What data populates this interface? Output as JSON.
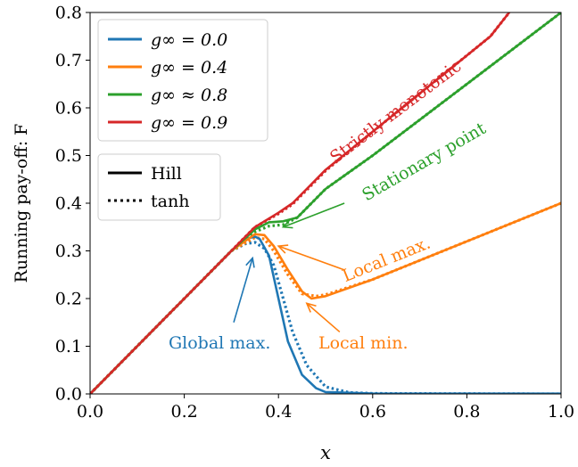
{
  "chart_data": {
    "type": "line",
    "xlabel": "x",
    "ylabel": "Running pay-off: F",
    "xlim": [
      0.0,
      1.0
    ],
    "ylim": [
      0.0,
      0.8
    ],
    "xticks": [
      0.0,
      0.2,
      0.4,
      0.6,
      0.8,
      1.0
    ],
    "xtick_labels": [
      "0.0",
      "0.2",
      "0.4",
      "0.6",
      "0.8",
      "1.0"
    ],
    "yticks": [
      0.0,
      0.1,
      0.2,
      0.3,
      0.4,
      0.5,
      0.6,
      0.7,
      0.8
    ],
    "ytick_labels": [
      "0.0",
      "0.1",
      "0.2",
      "0.3",
      "0.4",
      "0.5",
      "0.6",
      "0.7",
      "0.8"
    ],
    "grid": false,
    "legend_position": "top-left",
    "series": [
      {
        "name": "g∞ = 0.0",
        "color": "#1f77b4",
        "hill": [
          [
            0,
            0
          ],
          [
            0.1,
            0.1
          ],
          [
            0.2,
            0.2
          ],
          [
            0.3,
            0.3
          ],
          [
            0.33,
            0.325
          ],
          [
            0.35,
            0.33
          ],
          [
            0.36,
            0.325
          ],
          [
            0.38,
            0.29
          ],
          [
            0.4,
            0.2
          ],
          [
            0.42,
            0.11
          ],
          [
            0.45,
            0.04
          ],
          [
            0.48,
            0.012
          ],
          [
            0.5,
            0.004
          ],
          [
            0.6,
            0.001
          ],
          [
            0.8,
            0.0005
          ],
          [
            1.0,
            0.0005
          ]
        ],
        "tanh": [
          [
            0,
            0
          ],
          [
            0.1,
            0.1
          ],
          [
            0.2,
            0.2
          ],
          [
            0.3,
            0.3
          ],
          [
            0.33,
            0.315
          ],
          [
            0.35,
            0.318
          ],
          [
            0.37,
            0.305
          ],
          [
            0.39,
            0.27
          ],
          [
            0.41,
            0.2
          ],
          [
            0.43,
            0.13
          ],
          [
            0.46,
            0.06
          ],
          [
            0.5,
            0.015
          ],
          [
            0.55,
            0.003
          ],
          [
            0.6,
            0.001
          ],
          [
            1.0,
            0.0
          ]
        ]
      },
      {
        "name": "g∞ = 0.4",
        "color": "#ff7f0e",
        "hill": [
          [
            0,
            0
          ],
          [
            0.1,
            0.1
          ],
          [
            0.2,
            0.2
          ],
          [
            0.3,
            0.3
          ],
          [
            0.35,
            0.335
          ],
          [
            0.37,
            0.333
          ],
          [
            0.39,
            0.31
          ],
          [
            0.42,
            0.26
          ],
          [
            0.45,
            0.215
          ],
          [
            0.47,
            0.2
          ],
          [
            0.5,
            0.205
          ],
          [
            0.6,
            0.24
          ],
          [
            0.8,
            0.32
          ],
          [
            1.0,
            0.4
          ]
        ],
        "tanh": [
          [
            0,
            0
          ],
          [
            0.1,
            0.1
          ],
          [
            0.2,
            0.2
          ],
          [
            0.3,
            0.3
          ],
          [
            0.35,
            0.328
          ],
          [
            0.37,
            0.325
          ],
          [
            0.39,
            0.3
          ],
          [
            0.42,
            0.25
          ],
          [
            0.45,
            0.21
          ],
          [
            0.48,
            0.205
          ],
          [
            0.5,
            0.208
          ],
          [
            0.6,
            0.24
          ],
          [
            0.8,
            0.32
          ],
          [
            1.0,
            0.4
          ]
        ]
      },
      {
        "name": "g∞ ≈ 0.8",
        "color": "#2ca02c",
        "hill": [
          [
            0,
            0
          ],
          [
            0.1,
            0.1
          ],
          [
            0.2,
            0.2
          ],
          [
            0.3,
            0.3
          ],
          [
            0.35,
            0.345
          ],
          [
            0.38,
            0.36
          ],
          [
            0.41,
            0.362
          ],
          [
            0.44,
            0.37
          ],
          [
            0.47,
            0.4
          ],
          [
            0.5,
            0.43
          ],
          [
            0.6,
            0.5
          ],
          [
            0.8,
            0.65
          ],
          [
            1.0,
            0.8
          ]
        ],
        "tanh": [
          [
            0,
            0
          ],
          [
            0.1,
            0.1
          ],
          [
            0.2,
            0.2
          ],
          [
            0.3,
            0.3
          ],
          [
            0.35,
            0.34
          ],
          [
            0.38,
            0.352
          ],
          [
            0.41,
            0.355
          ],
          [
            0.44,
            0.37
          ],
          [
            0.47,
            0.4
          ],
          [
            0.5,
            0.43
          ],
          [
            0.6,
            0.5
          ],
          [
            0.8,
            0.65
          ],
          [
            1.0,
            0.8
          ]
        ]
      },
      {
        "name": "g∞ = 0.9",
        "color": "#d62728",
        "hill": [
          [
            0,
            0
          ],
          [
            0.1,
            0.1
          ],
          [
            0.2,
            0.2
          ],
          [
            0.3,
            0.3
          ],
          [
            0.35,
            0.35
          ],
          [
            0.4,
            0.38
          ],
          [
            0.43,
            0.4
          ],
          [
            0.46,
            0.43
          ],
          [
            0.5,
            0.47
          ],
          [
            0.6,
            0.55
          ],
          [
            0.7,
            0.63
          ],
          [
            0.8,
            0.71
          ],
          [
            0.85,
            0.75
          ],
          [
            0.89,
            0.8
          ]
        ],
        "tanh": [
          [
            0,
            0
          ],
          [
            0.1,
            0.1
          ],
          [
            0.2,
            0.2
          ],
          [
            0.3,
            0.3
          ],
          [
            0.35,
            0.35
          ],
          [
            0.4,
            0.378
          ],
          [
            0.43,
            0.398
          ],
          [
            0.46,
            0.428
          ],
          [
            0.5,
            0.468
          ],
          [
            0.6,
            0.55
          ],
          [
            0.7,
            0.63
          ],
          [
            0.8,
            0.71
          ],
          [
            0.85,
            0.75
          ],
          [
            0.89,
            0.8
          ]
        ]
      }
    ],
    "style_legend": [
      {
        "label": "Hill",
        "dash": "solid"
      },
      {
        "label": "tanh",
        "dash": "dotted"
      }
    ],
    "annotations": [
      {
        "text": "Strictly monotonic",
        "color": "#d62728",
        "x": 0.65,
        "y": 0.59,
        "rotate": -37,
        "arrow": null
      },
      {
        "text": "Stationary point",
        "color": "#2ca02c",
        "x": 0.71,
        "y": 0.485,
        "rotate": -30,
        "arrow": {
          "from": [
            0.54,
            0.4
          ],
          "to": [
            0.41,
            0.35
          ]
        }
      },
      {
        "text": "Local max.",
        "color": "#ff7f0e",
        "x": 0.63,
        "y": 0.28,
        "rotate": -22,
        "arrow": {
          "from": [
            0.54,
            0.26
          ],
          "to": [
            0.4,
            0.31
          ]
        }
      },
      {
        "text": "Local min.",
        "color": "#ff7f0e",
        "x": 0.58,
        "y": 0.105,
        "rotate": 0,
        "arrow": {
          "from": [
            0.53,
            0.13
          ],
          "to": [
            0.46,
            0.19
          ]
        }
      },
      {
        "text": "Global max.",
        "color": "#1f77b4",
        "x": 0.275,
        "y": 0.105,
        "rotate": 0,
        "arrow": {
          "from": [
            0.305,
            0.15
          ],
          "to": [
            0.345,
            0.285
          ]
        }
      }
    ]
  }
}
